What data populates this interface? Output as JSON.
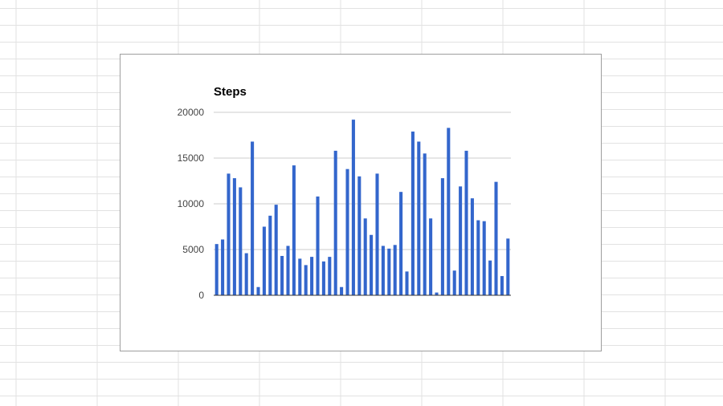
{
  "colors": {
    "bar": "#3366cc",
    "gridline": "#cccccc",
    "baseline": "#333333",
    "sheet_grid": "#e2e2e2"
  },
  "chart_data": {
    "type": "bar",
    "title": "Steps",
    "xlabel": "",
    "ylabel": "",
    "ylim": [
      0,
      20000
    ],
    "yticks": [
      "0",
      "5000",
      "10000",
      "15000",
      "20000"
    ],
    "grid": true,
    "legend": "none",
    "series": [
      {
        "values": [
          5600,
          6100,
          13300,
          12800,
          11800,
          4600,
          16800,
          900,
          7500,
          8700,
          9900,
          4300,
          5400,
          14200,
          4000,
          3300,
          4200,
          10800,
          3700,
          4200,
          15800,
          900,
          13800,
          19200,
          13000,
          8400,
          6600,
          13300,
          5400,
          5100,
          5500,
          11300,
          2600,
          17900,
          16800,
          15500,
          8400,
          300,
          12800,
          18300,
          2700,
          11900,
          15800,
          10600,
          8200,
          8100,
          3800,
          12400,
          2100,
          6200
        ]
      }
    ]
  }
}
